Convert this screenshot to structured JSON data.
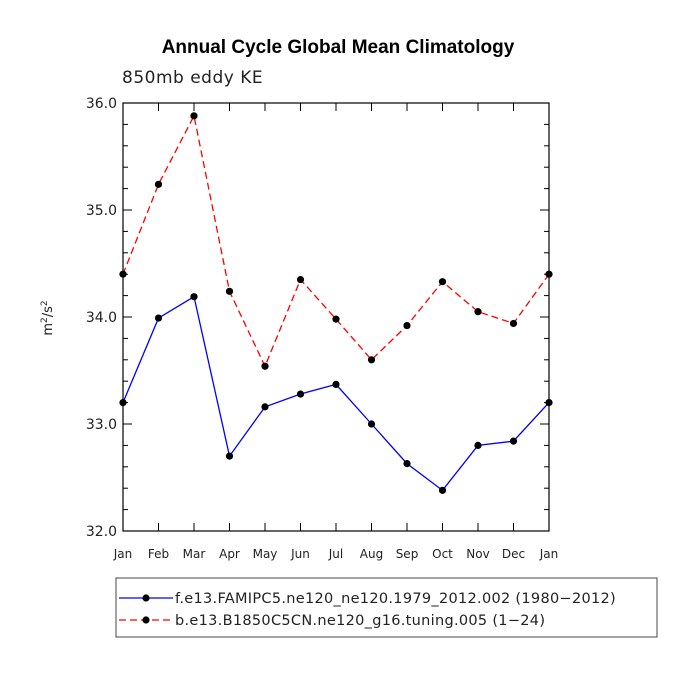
{
  "chart_data": {
    "type": "line",
    "title": "Annual Cycle Global Mean Climatology",
    "subtitle": "850mb eddy KE",
    "ylabel_base": "m",
    "ylabel_exp1": "2",
    "ylabel_mid": "/s",
    "ylabel_exp2": "2",
    "ylim": [
      32.0,
      36.0
    ],
    "yticks": [
      32.0,
      33.0,
      34.0,
      35.0,
      36.0
    ],
    "ytick_labels": [
      "32.0",
      "33.0",
      "34.0",
      "35.0",
      "36.0"
    ],
    "categories": [
      "Jan",
      "Feb",
      "Mar",
      "Apr",
      "May",
      "Jun",
      "Jul",
      "Aug",
      "Sep",
      "Oct",
      "Nov",
      "Dec",
      "Jan"
    ],
    "series": [
      {
        "name": "f.e13.FAMIPC5.ne120_ne120.1979_2012.002 (1980−2012)",
        "color": "#0000ff",
        "dash": "solid",
        "values": [
          33.2,
          33.99,
          34.19,
          32.7,
          33.16,
          33.28,
          33.37,
          33.0,
          32.63,
          32.38,
          32.8,
          32.84,
          33.2
        ]
      },
      {
        "name": "b.e13.B1850C5CN.ne120_g16.tuning.005 (1−24)",
        "color": "#ff0000",
        "dash": "dashed",
        "values": [
          34.4,
          35.24,
          35.88,
          34.24,
          33.54,
          34.35,
          33.98,
          33.6,
          33.92,
          34.33,
          34.05,
          33.94,
          34.4
        ]
      }
    ],
    "legend_position": "bottom"
  }
}
